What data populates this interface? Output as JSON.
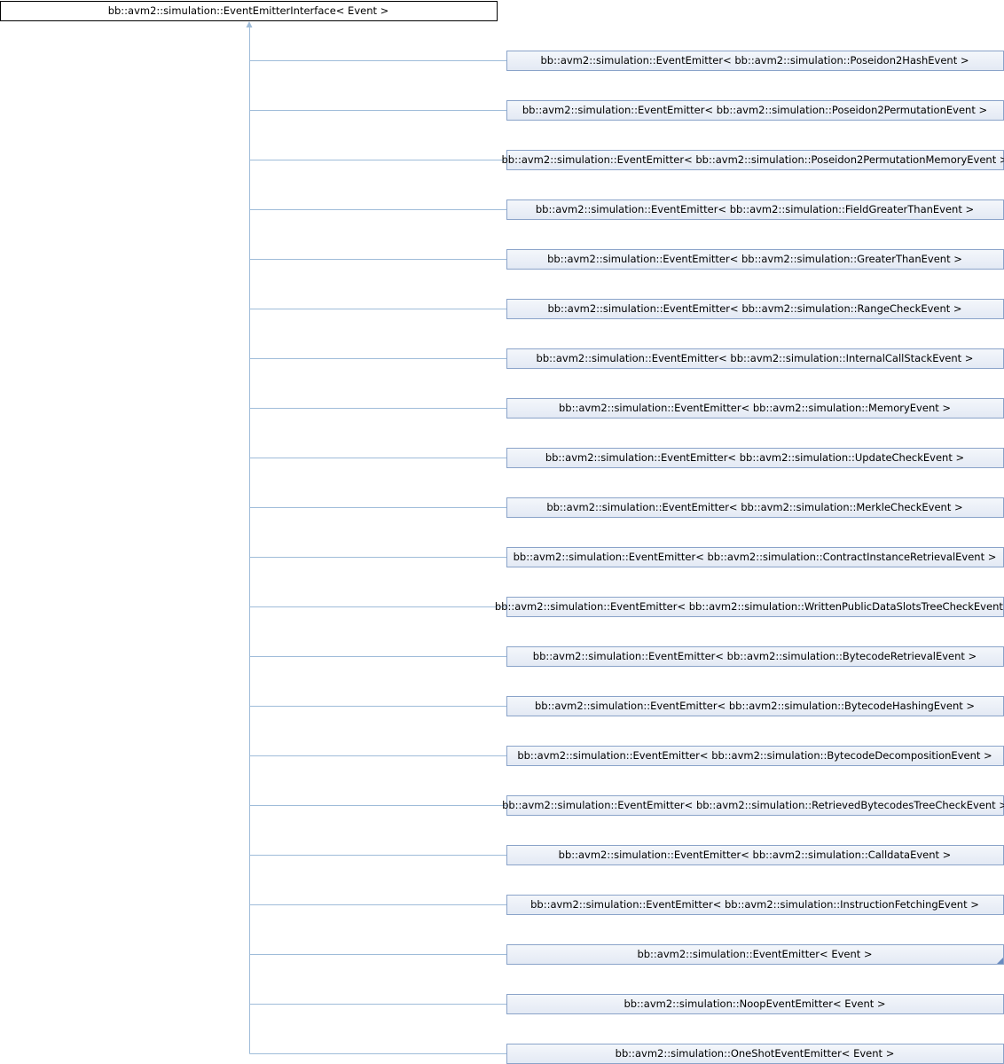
{
  "root": {
    "label": "bb::avm2::simulation::EventEmitterInterface< Event >"
  },
  "nodes": [
    {
      "label": "bb::avm2::simulation::EventEmitter< bb::avm2::simulation::Poseidon2HashEvent >"
    },
    {
      "label": "bb::avm2::simulation::EventEmitter< bb::avm2::simulation::Poseidon2PermutationEvent >"
    },
    {
      "label": "bb::avm2::simulation::EventEmitter< bb::avm2::simulation::Poseidon2PermutationMemoryEvent >"
    },
    {
      "label": "bb::avm2::simulation::EventEmitter< bb::avm2::simulation::FieldGreaterThanEvent >"
    },
    {
      "label": "bb::avm2::simulation::EventEmitter< bb::avm2::simulation::GreaterThanEvent >"
    },
    {
      "label": "bb::avm2::simulation::EventEmitter< bb::avm2::simulation::RangeCheckEvent >"
    },
    {
      "label": "bb::avm2::simulation::EventEmitter< bb::avm2::simulation::InternalCallStackEvent >"
    },
    {
      "label": "bb::avm2::simulation::EventEmitter< bb::avm2::simulation::MemoryEvent >"
    },
    {
      "label": "bb::avm2::simulation::EventEmitter< bb::avm2::simulation::UpdateCheckEvent >"
    },
    {
      "label": "bb::avm2::simulation::EventEmitter< bb::avm2::simulation::MerkleCheckEvent >"
    },
    {
      "label": "bb::avm2::simulation::EventEmitter< bb::avm2::simulation::ContractInstanceRetrievalEvent >"
    },
    {
      "label": "bb::avm2::simulation::EventEmitter< bb::avm2::simulation::WrittenPublicDataSlotsTreeCheckEvent >"
    },
    {
      "label": "bb::avm2::simulation::EventEmitter< bb::avm2::simulation::BytecodeRetrievalEvent >"
    },
    {
      "label": "bb::avm2::simulation::EventEmitter< bb::avm2::simulation::BytecodeHashingEvent >"
    },
    {
      "label": "bb::avm2::simulation::EventEmitter< bb::avm2::simulation::BytecodeDecompositionEvent >"
    },
    {
      "label": "bb::avm2::simulation::EventEmitter< bb::avm2::simulation::RetrievedBytecodesTreeCheckEvent >"
    },
    {
      "label": "bb::avm2::simulation::EventEmitter< bb::avm2::simulation::CalldataEvent >"
    },
    {
      "label": "bb::avm2::simulation::EventEmitter< bb::avm2::simulation::InstructionFetchingEvent >"
    },
    {
      "label": "bb::avm2::simulation::EventEmitter< Event >"
    },
    {
      "label": "bb::avm2::simulation::NoopEventEmitter< Event >"
    },
    {
      "label": "bb::avm2::simulation::OneShotEventEmitter< Event >"
    }
  ]
}
